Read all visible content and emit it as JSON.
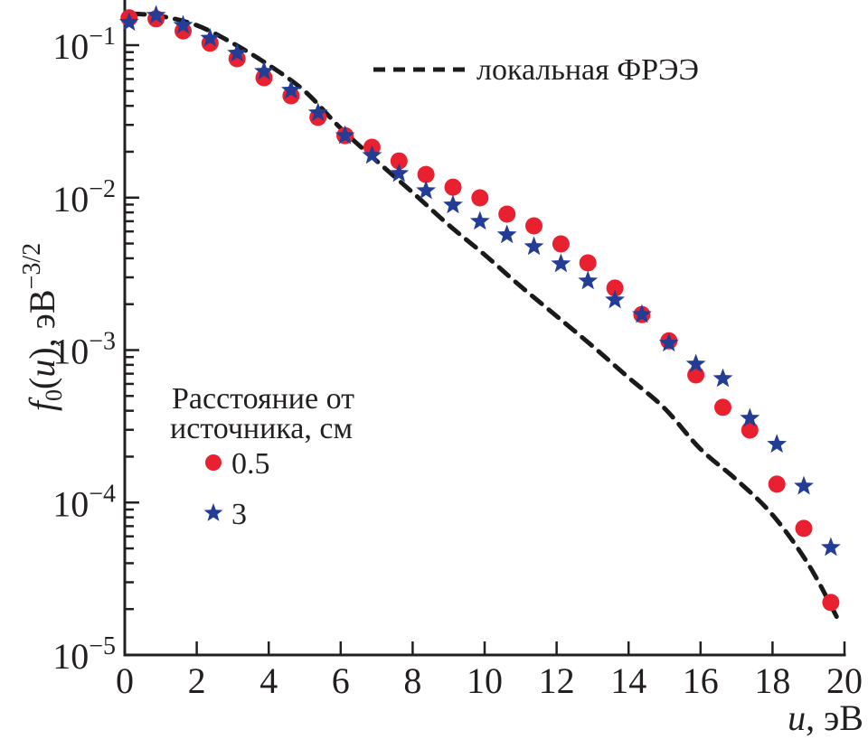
{
  "chart_data": {
    "type": "scatter",
    "title": "",
    "xlabel": "u, эВ",
    "xlabel_var": "u",
    "xlabel_unit": ", эВ",
    "ylabel": "f0(u), эВ^-3/2",
    "ylabel_parts": {
      "f": "f",
      "sub": "0",
      "arg_open": "(",
      "arg": "u",
      "arg_close": "),",
      "unit": " эВ",
      "exp": "−3/2"
    },
    "xlim": [
      0,
      20
    ],
    "ylim": [
      1e-05,
      0.2
    ],
    "yscale": "log",
    "grid": false,
    "x_ticks": [
      0,
      2,
      4,
      6,
      8,
      10,
      12,
      14,
      16,
      18,
      20
    ],
    "x_tick_labels": [
      "0",
      "2",
      "4",
      "6",
      "8",
      "10",
      "12",
      "14",
      "16",
      "18",
      "20"
    ],
    "y_ticks": [
      0.1,
      0.01,
      0.001,
      0.0001,
      1e-05
    ],
    "y_tick_labels": [
      {
        "base": "10",
        "exp": "−1"
      },
      {
        "base": "10",
        "exp": "−2"
      },
      {
        "base": "10",
        "exp": "−3"
      },
      {
        "base": "10",
        "exp": "−4"
      },
      {
        "base": "10",
        "exp": "−5"
      }
    ],
    "legend_title": [
      "Расстояние от",
      "источника, см"
    ],
    "legend_placement": "center-left",
    "line_legend_placement": "top-center",
    "series": [
      {
        "name": "0.5",
        "kind": "scatter",
        "marker": "circle",
        "color": "#e8202f",
        "x": [
          0.12,
          0.87,
          1.62,
          2.37,
          3.12,
          3.87,
          4.62,
          5.37,
          6.12,
          6.87,
          7.62,
          8.37,
          9.12,
          9.87,
          10.62,
          11.37,
          12.12,
          12.87,
          13.62,
          14.37,
          15.12,
          15.87,
          16.62,
          17.37,
          18.12,
          18.87,
          19.62
        ],
        "y": [
          0.151,
          0.149,
          0.124,
          0.103,
          0.0815,
          0.0612,
          0.0466,
          0.0336,
          0.0255,
          0.0214,
          0.0174,
          0.0142,
          0.0117,
          0.00997,
          0.0078,
          0.00653,
          0.00497,
          0.00373,
          0.00255,
          0.00171,
          0.00115,
          0.000687,
          0.000421,
          0.000299,
          0.000132,
          6.76e-05,
          2.21e-05
        ]
      },
      {
        "name": "3",
        "kind": "scatter",
        "marker": "star",
        "color": "#233d96",
        "x": [
          0.12,
          0.87,
          1.62,
          2.37,
          3.12,
          3.87,
          4.62,
          5.37,
          6.12,
          6.87,
          7.62,
          8.37,
          9.12,
          9.87,
          10.62,
          11.37,
          12.12,
          12.87,
          13.62,
          14.37,
          15.12,
          15.87,
          16.62,
          17.37,
          18.12,
          18.87,
          19.62
        ],
        "y": [
          0.141,
          0.157,
          0.135,
          0.111,
          0.0885,
          0.0673,
          0.0506,
          0.036,
          0.0255,
          0.0189,
          0.0144,
          0.0111,
          0.00894,
          0.00699,
          0.0057,
          0.00477,
          0.00368,
          0.00284,
          0.00213,
          0.00171,
          0.00111,
          0.000809,
          0.00065,
          0.000357,
          0.000241,
          0.000128,
          5.07e-05
        ]
      },
      {
        "name": "локальная ФРЭЭ",
        "kind": "line",
        "style": "dashed",
        "color": "#1a1a1a",
        "x": [
          0.2,
          1,
          2,
          3,
          4,
          5,
          6,
          7,
          8,
          9,
          10,
          11,
          12,
          13,
          14,
          15,
          16,
          17,
          18,
          19,
          19.85
        ],
        "y": [
          0.161,
          0.155,
          0.135,
          0.103,
          0.0741,
          0.0499,
          0.0285,
          0.0174,
          0.0108,
          0.00662,
          0.00422,
          0.00262,
          0.00167,
          0.00106,
          0.00066,
          0.000415,
          0.000224,
          0.000141,
          8.3e-05,
          3.92e-05,
          1.66e-05
        ]
      }
    ]
  }
}
